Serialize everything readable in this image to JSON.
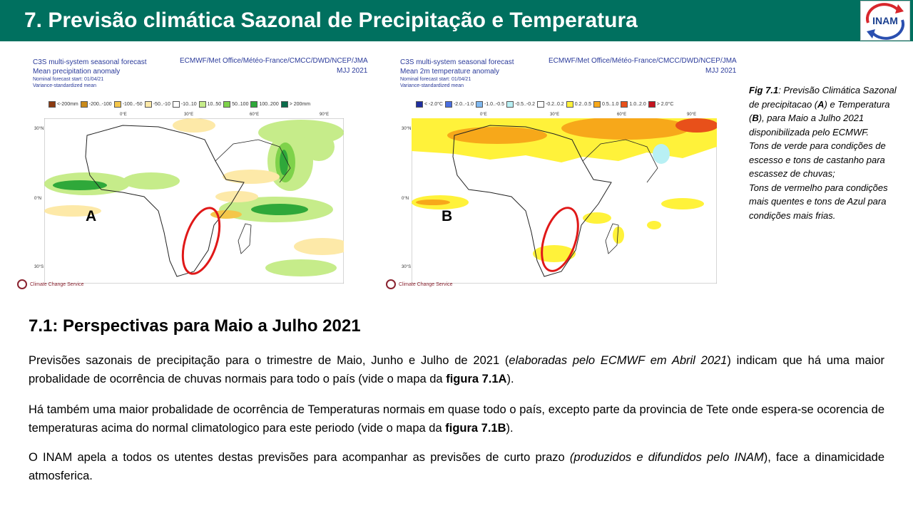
{
  "header": {
    "title": "7. Previsão climática Sazonal de Precipitação e Temperatura",
    "logo_text": "INAM",
    "bg_color": "#00705f"
  },
  "figure_a": {
    "title_lines": [
      "C3S multi-system seasonal forecast",
      "Mean precipitation anomaly",
      "Nominal forecast start: 01/04/21",
      "Variance-standardized mean"
    ],
    "source": "ECMWF/Met Office/Météo-France/CMCC/DWD/NCEP/JMA",
    "season": "MJJ 2021",
    "legend": [
      {
        "label": "<-200mm",
        "color": "#8b3a10"
      },
      {
        "label": "-200..-100",
        "color": "#c98a1a"
      },
      {
        "label": "-100..-50",
        "color": "#f4c64a"
      },
      {
        "label": "-50..-10",
        "color": "#fde9a8"
      },
      {
        "label": "-10..10",
        "color": "#ffffff"
      },
      {
        "label": "10..50",
        "color": "#c6ec8a"
      },
      {
        "label": "50..100",
        "color": "#7ed24a"
      },
      {
        "label": "100..200",
        "color": "#2fa83a"
      },
      {
        "label": "> 200mm",
        "color": "#0a6b4a"
      }
    ],
    "panel_letter": "A",
    "lat_labels": [
      "30°N",
      "0°N",
      "30°S"
    ],
    "lon_labels": [
      "0°E",
      "30°E",
      "60°E",
      "90°E"
    ],
    "credit": "Climate Change Service"
  },
  "figure_b": {
    "title_lines": [
      "C3S multi-system seasonal forecast",
      "Mean 2m temperature anomaly",
      "Nominal forecast start: 01/04/21",
      "Variance-standardized mean"
    ],
    "source": "ECMWF/Met Office/Météo-France/CMCC/DWD/NCEP/JMA",
    "season": "MJJ 2021",
    "legend": [
      {
        "label": "< -2.0°C",
        "color": "#1f2fa0"
      },
      {
        "label": "-2.0..-1.0",
        "color": "#4a6fe0"
      },
      {
        "label": "-1.0..-0.5",
        "color": "#7fb8f0"
      },
      {
        "label": "-0.5..-0.2",
        "color": "#b8f0f4"
      },
      {
        "label": "-0.2..0.2",
        "color": "#ffffff"
      },
      {
        "label": "0.2..0.5",
        "color": "#fff23a"
      },
      {
        "label": "0.5..1.0",
        "color": "#f7a81a"
      },
      {
        "label": "1.0..2.0",
        "color": "#e8501a"
      },
      {
        "label": "> 2.0°C",
        "color": "#c41420"
      }
    ],
    "panel_letter": "B",
    "lat_labels": [
      "30°N",
      "0°N",
      "30°S"
    ],
    "lon_labels": [
      "0°E",
      "30°E",
      "60°E",
      "90°E"
    ],
    "credit": "Climate Change Service"
  },
  "caption": {
    "fig_ref": "Fig 7.1",
    "text_1": ": Previsão Climática Sazonal de precipitacao (",
    "a": "A",
    "text_2": ") e Temperatura (",
    "b": "B",
    "text_3": "), para Maio a Julho 2021 disponibilizada pelo ECMWF.",
    "line_green": "Tons de verde para condições de escesso e tons de castanho para escassez de chuvas;",
    "line_red": "Tons de vermelho para condições mais quentes e tons de Azul para condições mais frias."
  },
  "section": {
    "title": "7.1: Perspectivas para  Maio a Julho 2021"
  },
  "paragraphs": {
    "p1_a": "Previsões sazonais de precipitação para o trimestre de Maio, Junho e Julho de 2021 (",
    "p1_italic": "elaboradas pelo ECMWF em Abril 2021",
    "p1_b": ") indicam que há uma maior probalidade de ocorrência de chuvas normais para todo o país (vide o mapa da ",
    "p1_bold": "figura 7.1A",
    "p1_c": ").",
    "p2_a": "Há também uma maior probalidade de ocorrência de Temperaturas normais  em quase todo o país, excepto parte da provincia de Tete onde espera-se  ocorencia de temperaturas acima do normal climatologico para este periodo (vide o mapa da ",
    "p2_bold": "figura 7.1B",
    "p2_c": ").",
    "p3_a": "O INAM apela a todos os utentes destas previsões para acompanhar as previsões de curto prazo ",
    "p3_italic": "(produzidos e difundidos pelo INAM",
    "p3_b": "), face a dinamicidade atmosferica."
  }
}
